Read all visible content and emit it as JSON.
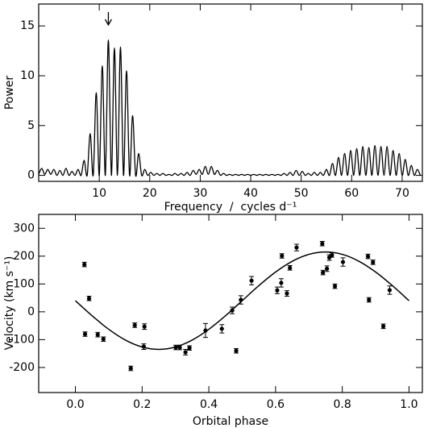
{
  "chart_data": [
    {
      "type": "line",
      "xlabel": "Frequency  /  cycles d⁻¹",
      "ylabel": "Power",
      "xlim": [
        -2,
        74
      ],
      "ylim": [
        -0.6,
        17.2
      ],
      "xticks": [
        10,
        20,
        30,
        40,
        50,
        60,
        70
      ],
      "yticks": [
        0,
        5,
        10,
        15
      ],
      "color": "#000000",
      "marked_x": 11.8,
      "x": [
        -2.0,
        -1.4,
        -0.8,
        -0.2,
        0.4,
        1.0,
        1.6,
        2.2,
        2.8,
        3.4,
        4.0,
        4.6,
        5.2,
        5.8,
        6.4,
        7.0,
        7.6,
        8.2,
        8.8,
        9.4,
        10.0,
        10.6,
        11.2,
        11.8,
        12.4,
        13.0,
        13.6,
        14.2,
        14.8,
        15.4,
        16.0,
        16.6,
        17.2,
        17.8,
        18.4,
        19.0,
        19.6,
        20.2,
        20.8,
        21.4,
        22.0,
        22.6,
        23.2,
        23.8,
        24.4,
        25.0,
        25.6,
        26.2,
        26.8,
        27.4,
        28.0,
        28.6,
        29.2,
        29.8,
        30.4,
        31.0,
        31.6,
        32.2,
        32.8,
        33.4,
        34.0,
        34.6,
        35.2,
        35.8,
        36.4,
        37.0,
        37.6,
        38.2,
        38.8,
        39.4,
        40.0,
        40.6,
        41.2,
        41.8,
        42.4,
        43.0,
        43.6,
        44.2,
        44.8,
        45.4,
        46.0,
        46.6,
        47.2,
        47.8,
        48.4,
        49.0,
        49.6,
        50.2,
        50.8,
        51.4,
        52.0,
        52.6,
        53.2,
        53.8,
        54.4,
        55.0,
        55.6,
        56.2,
        56.8,
        57.4,
        58.0,
        58.6,
        59.2,
        59.8,
        60.4,
        61.0,
        61.6,
        62.2,
        62.8,
        63.4,
        64.0,
        64.6,
        65.2,
        65.8,
        66.4,
        67.0,
        67.6,
        68.2,
        68.8,
        69.4,
        70.0,
        70.6,
        71.2,
        71.8,
        72.4,
        73.0,
        73.6
      ],
      "values": [
        0.1,
        0.7,
        0.1,
        0.6,
        0.1,
        0.6,
        0,
        0.5,
        0,
        0.7,
        0,
        0.4,
        0,
        0.6,
        0,
        1.5,
        0,
        4.2,
        0,
        8.3,
        0,
        11.0,
        0,
        13.6,
        0,
        12.8,
        0,
        12.9,
        0,
        10.5,
        0,
        6.0,
        0,
        2.2,
        0,
        0.6,
        0,
        0.3,
        0,
        0.2,
        0,
        0.2,
        0,
        0.1,
        0,
        0.2,
        0,
        0.2,
        0,
        0.3,
        0,
        0.5,
        0.1,
        0.6,
        0.1,
        0.9,
        0.1,
        0.9,
        0.1,
        0.5,
        0,
        0.2,
        0,
        0.1,
        0,
        0.1,
        0,
        0.1,
        0,
        0.1,
        0,
        0.1,
        0,
        0.1,
        0,
        0.1,
        0,
        0.1,
        0,
        0.1,
        0,
        0.2,
        0,
        0.3,
        0,
        0.5,
        0,
        0.4,
        0,
        0.2,
        0,
        0.3,
        0,
        0.3,
        0,
        0.6,
        0,
        1.2,
        0,
        1.8,
        0,
        2.2,
        0,
        2.5,
        0,
        2.7,
        0,
        2.9,
        0,
        2.8,
        0,
        3.0,
        0,
        2.9,
        0,
        2.9,
        0,
        2.5,
        0,
        2.2,
        0,
        1.6,
        0,
        1.0,
        0,
        0.6,
        0
      ]
    },
    {
      "type": "scatter",
      "xlabel": "Orbital phase",
      "ylabel": "Velocity (km s⁻¹)",
      "xlim": [
        -0.11,
        1.04
      ],
      "ylim": [
        -290,
        350
      ],
      "xticks": [
        {
          "value": 0,
          "label": "0.0"
        },
        {
          "value": 0.2,
          "label": "0.2"
        },
        {
          "value": 0.4,
          "label": "0.4"
        },
        {
          "value": 0.6,
          "label": "0.6"
        },
        {
          "value": 0.8,
          "label": "0.8"
        },
        {
          "value": 1,
          "label": "1.0"
        }
      ],
      "yticks": [
        -200,
        -100,
        0,
        100,
        200,
        300
      ],
      "color": "#000000",
      "points": {
        "x": [
          0.027,
          0.029,
          0.041,
          0.067,
          0.084,
          0.166,
          0.178,
          0.205,
          0.207,
          0.301,
          0.313,
          0.33,
          0.342,
          0.39,
          0.439,
          0.47,
          0.482,
          0.496,
          0.528,
          0.605,
          0.617,
          0.619,
          0.634,
          0.643,
          0.663,
          0.74,
          0.742,
          0.754,
          0.761,
          0.769,
          0.778,
          0.802,
          0.877,
          0.88,
          0.892,
          0.923,
          0.942
        ],
        "values": [
          170,
          -80,
          48,
          -82,
          -98,
          -203,
          -48,
          -125,
          -53,
          -128,
          -128,
          -145,
          -130,
          -67,
          -61,
          5,
          -140,
          43,
          112,
          77,
          104,
          201,
          66,
          158,
          231,
          245,
          141,
          155,
          195,
          204,
          92,
          179,
          199,
          43,
          178,
          -52,
          78
        ],
        "errors": [
          8,
          8,
          8,
          8,
          8,
          8,
          8,
          10,
          10,
          8,
          8,
          10,
          8,
          25,
          15,
          12,
          8,
          15,
          15,
          12,
          15,
          8,
          10,
          8,
          12,
          8,
          8,
          10,
          10,
          8,
          8,
          15,
          8,
          8,
          8,
          8,
          15
        ]
      },
      "curve": {
        "x": [
          0,
          0.05,
          0.1,
          0.15,
          0.2,
          0.25,
          0.3,
          0.35,
          0.4,
          0.45,
          0.5,
          0.55,
          0.6,
          0.65,
          0.7,
          0.75,
          0.8,
          0.85,
          0.9,
          0.95,
          1
        ],
        "values": [
          40,
          -14.1,
          -62.9,
          -101.6,
          -126.4,
          -135,
          -126.4,
          -101.6,
          -62.9,
          -14.1,
          40,
          94.1,
          142.9,
          181.6,
          206.4,
          215,
          206.4,
          181.6,
          142.9,
          94.1,
          40
        ]
      }
    }
  ]
}
